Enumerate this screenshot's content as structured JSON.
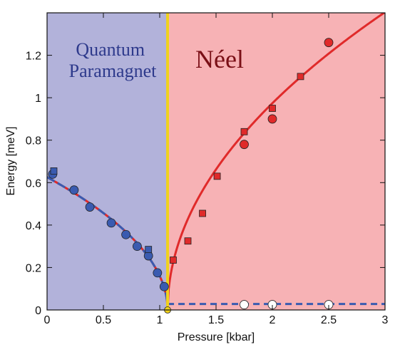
{
  "chart_data": {
    "type": "scatter",
    "xlabel": "Pressure [kbar]",
    "ylabel": "Energy [meV]",
    "xlim": [
      0,
      3
    ],
    "ylim": [
      0,
      1.4
    ],
    "x_ticks": [
      "0",
      "0.5",
      "1",
      "1.5",
      "2",
      "2.5",
      "3"
    ],
    "y_ticks": [
      "0",
      "0.2",
      "0.4",
      "0.6",
      "0.8",
      "1",
      "1.2"
    ],
    "grid": false,
    "critical_pressure": 1.07,
    "regions": [
      {
        "label_lines": [
          "Quantum",
          "Paramagnet"
        ],
        "x_range": [
          0,
          1.07
        ],
        "color": "#b2b2da"
      },
      {
        "label_lines": [
          "Néel"
        ],
        "x_range": [
          1.07,
          3
        ],
        "color": "#f7b2b5"
      }
    ],
    "transition_line_color": "#f0d21c",
    "series": [
      {
        "marker": "circle",
        "color": "#3a5bb0",
        "x": [
          0.05,
          0.24,
          0.38,
          0.57,
          0.7,
          0.8,
          0.9,
          0.98,
          1.04
        ],
        "y": [
          0.64,
          0.565,
          0.485,
          0.41,
          0.355,
          0.3,
          0.255,
          0.175,
          0.11
        ]
      },
      {
        "marker": "square",
        "color": "#3a5bb0",
        "x": [
          0.06,
          0.9
        ],
        "y": [
          0.655,
          0.285
        ]
      },
      {
        "marker": "square",
        "color": "#e02a2a",
        "x": [
          1.12,
          1.25,
          1.38,
          1.51,
          1.75,
          2.0,
          2.25
        ],
        "y": [
          0.235,
          0.325,
          0.455,
          0.63,
          0.84,
          0.95,
          1.1
        ]
      },
      {
        "marker": "circle",
        "color": "#e02a2a",
        "x": [
          1.75,
          2.0,
          2.5
        ],
        "y": [
          0.78,
          0.9,
          1.26
        ]
      },
      {
        "marker": "circle",
        "color": "#ffffff",
        "x": [
          1.75,
          2.0,
          2.5
        ],
        "y": [
          0.025,
          0.025,
          0.025
        ]
      },
      {
        "marker": "circle",
        "color": "#f0d21c",
        "x": [
          1.07
        ],
        "y": [
          0.0
        ]
      }
    ],
    "fit_curves": [
      {
        "style": "dashed-two-tone",
        "colors": [
          "#3a5bb0",
          "#e02a2a"
        ],
        "domain": [
          0,
          1.07
        ],
        "form": "a*(pc-x)^0.5",
        "amplitude": 0.605
      },
      {
        "style": "solid",
        "color": "#e02a2a",
        "domain": [
          1.07,
          3
        ],
        "form": "a*(x-pc)^0.5",
        "amplitude": 1.01
      },
      {
        "style": "dashed",
        "color": "#3a5bb0",
        "domain": [
          1.07,
          3
        ],
        "constant": 0.028
      }
    ]
  }
}
